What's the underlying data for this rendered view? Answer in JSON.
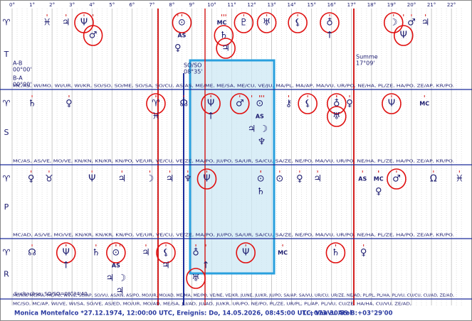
{
  "degree_axis": [
    {
      "value": 0,
      "label": "0°"
    },
    {
      "value": 1,
      "label": "1°"
    },
    {
      "value": 2,
      "label": "2°"
    },
    {
      "value": 3,
      "label": "3°"
    },
    {
      "value": 4,
      "label": "4°"
    },
    {
      "value": 5,
      "label": "5°"
    },
    {
      "value": 6,
      "label": "6°"
    },
    {
      "value": 7,
      "label": "7°"
    },
    {
      "value": 8,
      "label": "8°"
    },
    {
      "value": 9,
      "label": "9°"
    },
    {
      "value": 10,
      "label": "10°"
    },
    {
      "value": 11,
      "label": "11°"
    },
    {
      "value": 12,
      "label": "12°"
    },
    {
      "value": 13,
      "label": "13°"
    },
    {
      "value": 14,
      "label": "14°"
    },
    {
      "value": 15,
      "label": "15°"
    },
    {
      "value": 16,
      "label": "16°"
    },
    {
      "value": 17,
      "label": "17°"
    },
    {
      "value": 18,
      "label": "18°"
    },
    {
      "value": 19,
      "label": "19°"
    },
    {
      "value": 20,
      "label": "20°"
    },
    {
      "value": 21,
      "label": "21°"
    },
    {
      "value": 22,
      "label": "22°"
    }
  ],
  "rows": [
    {
      "sign": "♈",
      "label": "T",
      "midpoints": "MC/AS, WI/MO, WI/UR, WI/KR, SO/SO, SO/ME, SO/SA, SO/CU, AS/AS, ME/ME, ME/SA, ME/CU, VE/JU, MA/PL, MA/AP, MA/VU, UR/PO, NE/HA, PL/ZE, HA/PO, ZE/AP, KR/PO.",
      "glyphs": [
        {
          "s": "♓",
          "deg": 1.75
        },
        {
          "s": "♃",
          "deg": 2.7
        },
        {
          "s": "Ψ",
          "deg": 3.6,
          "circled": true
        },
        {
          "s": "♂",
          "deg": 4.05,
          "circled": true
        },
        {
          "s": "⊙",
          "deg": 8.5,
          "circled": true
        },
        {
          "s": "MC",
          "deg": 10.5,
          "color": "#1a9a1a"
        },
        {
          "s": "♇",
          "deg": 11.6,
          "circled": true
        },
        {
          "s": "♅",
          "deg": 12.75,
          "circled": true
        },
        {
          "s": "⚸",
          "deg": 14.3,
          "circled": true
        },
        {
          "s": "♁",
          "deg": 15.9,
          "circled": true
        },
        {
          "s": "☽",
          "deg": 19.1,
          "circled": true
        },
        {
          "s": "♂",
          "deg": 20.0
        },
        {
          "s": "♃",
          "deg": 20.7
        },
        {
          "s": "AS",
          "deg": 8.5,
          "color": "#d42020"
        },
        {
          "s": "♄",
          "deg": 10.6,
          "circled": true
        },
        {
          "s": "↑",
          "deg": 15.9
        },
        {
          "s": "Ψ",
          "deg": 19.6,
          "circled": true
        },
        {
          "s": "♀",
          "deg": 8.3
        },
        {
          "s": "♃",
          "deg": 10.7,
          "circled": true
        }
      ]
    },
    {
      "sign": "♈",
      "label": "S",
      "midpoints": "MC/AS, AS/VE, MO/VE, KN/KN, KN/KR, KN/PO, VE/UR, VE/CU, VE/ZE, MA/PO, JU/PO, SA/UR, SA/CU, SA/ZE, NE/PO, MA/VU, UR/PO, NE/HA, PL/ZE, HA/PO, ZE/AP, KR/PO.",
      "glyphs": [
        {
          "s": "♄",
          "deg": 1.0
        },
        {
          "s": "♀",
          "deg": 2.85
        },
        {
          "s": "♈",
          "deg": 7.2,
          "circled": true
        },
        {
          "s": "☊",
          "deg": 8.6
        },
        {
          "s": "Ψ",
          "deg": 9.95,
          "circled": true
        },
        {
          "s": "♂",
          "deg": 11.4,
          "circled": true
        },
        {
          "s": "⊙",
          "deg": 12.4
        },
        {
          "s": "⚷",
          "deg": 13.85
        },
        {
          "s": "⚸",
          "deg": 14.8,
          "circled": true
        },
        {
          "s": "♁",
          "deg": 16.25,
          "circled": true
        },
        {
          "s": "♀",
          "deg": 16.9
        },
        {
          "s": "Ψ",
          "deg": 19.0,
          "circled": true
        },
        {
          "s": "MC",
          "deg": 20.65,
          "color": "#1a9a1a"
        },
        {
          "s": "♓",
          "deg": 7.2
        },
        {
          "s": "↑",
          "deg": 9.95
        },
        {
          "s": "AS",
          "deg": 12.4,
          "color": "#d42020"
        },
        {
          "s": "♅",
          "deg": 16.25,
          "circled": true
        },
        {
          "s": "♃",
          "deg": 12.0
        },
        {
          "s": "☽",
          "deg": 12.6
        },
        {
          "s": "♆",
          "deg": 12.5
        }
      ]
    },
    {
      "sign": "♈",
      "label": "P",
      "midpoints": "MC/AD, AS/VE, MO/VE, KN/KR, KN/KR, KN/PO, VE/UR, VE/CU, VE/ZE, MA/PO, JU/PO, SA/UR, SA/CU, SA/ZE, NE/PO, MA/VU, UR/PO, NE/HA, PL/ZE, HA/PO, ZE/AP, KR/PO.",
      "glyphs": [
        {
          "s": "♀",
          "deg": 0.95
        },
        {
          "s": "♉",
          "deg": 1.85
        },
        {
          "s": "Ψ",
          "deg": 4.0
        },
        {
          "s": "♃",
          "deg": 5.5
        },
        {
          "s": "☽",
          "deg": 6.9
        },
        {
          "s": "♃",
          "deg": 7.9
        },
        {
          "s": "♆",
          "deg": 8.8
        },
        {
          "s": "Ψ",
          "deg": 9.75,
          "circled": true
        },
        {
          "s": "⊙",
          "deg": 12.45
        },
        {
          "s": "⊙",
          "deg": 13.4
        },
        {
          "s": "♀",
          "deg": 14.4
        },
        {
          "s": "♃",
          "deg": 15.3
        },
        {
          "s": "AS",
          "deg": 17.55,
          "color": "#d42020"
        },
        {
          "s": "MC",
          "deg": 18.35,
          "color": "#1a9a1a"
        },
        {
          "s": "♂",
          "deg": 19.25,
          "circled": true
        },
        {
          "s": "Ω",
          "deg": 21.1
        },
        {
          "s": "♓",
          "deg": 22.4
        },
        {
          "s": "♄",
          "deg": 12.45
        },
        {
          "s": "♀",
          "deg": 18.35
        }
      ]
    },
    {
      "sign": "♈",
      "label": "R",
      "midpoints": "MC/KN, MC/MA, MC/PO, WI/VE, SO/AP, SO/VU, AS/KN, AS/PO, MO/UR, MO/AD, ME/MA, ME/PO, VE/NE, VE/KR, JU/NE, JU/KR, JU/PO, SA/AP, SA/VU, UR/CU, UR/ZE, NE/AD, PL/PL, PL/HA, PL/VU, CU/CU, CU/AD, ZE/AD,",
      "glyphs": [
        {
          "s": "☊",
          "deg": 1.0
        },
        {
          "s": "Ψ",
          "deg": 2.7,
          "circled": true
        },
        {
          "s": "♄",
          "deg": 4.2
        },
        {
          "s": "⊙",
          "deg": 5.2,
          "circled": true
        },
        {
          "s": "♃",
          "deg": 6.7
        },
        {
          "s": "⚸",
          "deg": 7.7,
          "circled": true
        },
        {
          "s": "♁",
          "deg": 9.2
        },
        {
          "s": "↑",
          "deg": 9.7
        },
        {
          "s": "Ψ",
          "deg": 11.7,
          "circled": true
        },
        {
          "s": "MC",
          "deg": 13.55,
          "color": "#1a9a1a"
        },
        {
          "s": "♄",
          "deg": 16.2,
          "circled": true
        },
        {
          "s": "♀",
          "deg": 17.6
        },
        {
          "s": "↑",
          "deg": 2.7
        },
        {
          "s": "AS",
          "deg": 5.2,
          "color": "#d42020"
        },
        {
          "s": "♃",
          "deg": 7.7
        },
        {
          "s": "♅",
          "deg": 9.2,
          "circled": true
        },
        {
          "s": "♃",
          "deg": 4.9
        },
        {
          "s": "☽",
          "deg": 5.5
        },
        {
          "s": "♃",
          "deg": 5.4
        }
      ]
    }
  ],
  "last_midpoints": "MC/SO, MC/AP, WI/VE, WI/SA, SO/VE, AS/ED, MO/UR, MO/AD, ME/SA, JU/AD, JU/AD, JU/KR, UR/PO, NE/PO, PL/ZE, UR/PL, PL/AP, PL/VU, CU/ZE, HA/HA, CU/VU, ZE/AD,",
  "annotations": {
    "ab": "A-B",
    "ab_value": "00°00'",
    "ba": "B-A",
    "ba_value": "00°00'",
    "soso": "SO/SO",
    "soso_value": "08°35'",
    "summe": "Summe",
    "summe_value": "17°09'",
    "suchachse": "Suchachse: SO/SO=08°34'40"
  },
  "footer": {
    "person": "Monica Montefalco  *27.12.1974, 12:00:00 UTC, Ereignis: Do, 14.05.2026, 08:45:00 UTC, Vaavu Atol",
    "coords": "L:+073°30'59 B:+03°29'00"
  }
}
